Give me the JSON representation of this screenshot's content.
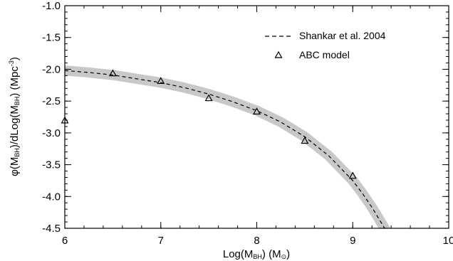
{
  "chart_data": {
    "type": "line",
    "xlabel": "Log(M",
    "xlabel_sub": "BH",
    "xlabel_mid": ") (M",
    "xlabel_sub2": "⊙",
    "xlabel_end": ")",
    "ylabel": "φ(M",
    "ylabel_sub": "BH",
    "ylabel_mid": ")/dLog(M",
    "ylabel_sub2": "BH",
    "ylabel_end": ") (Mpc",
    "ylabel_sup": "-3",
    "ylabel_close": ")",
    "xlim": [
      6,
      10
    ],
    "ylim": [
      -4.5,
      -1.0
    ],
    "xticks": [
      6,
      7,
      8,
      9,
      10
    ],
    "xtick_labels": [
      "6",
      "7",
      "8",
      "9",
      "10"
    ],
    "yticks": [
      -1.0,
      -1.5,
      -2.0,
      -2.5,
      -3.0,
      -3.5,
      -4.0,
      -4.5
    ],
    "ytick_labels": [
      "-1.0",
      "-1.5",
      "-2.0",
      "-2.5",
      "-3.0",
      "-3.5",
      "-4.0",
      "-4.5"
    ],
    "legend_position": "top-right",
    "series": [
      {
        "name": "Shankar et al. 2004",
        "style": "dashed",
        "color": "#000000",
        "band_color": "#c8c8c8",
        "band_halfwidth": 0.08,
        "x": [
          6.0,
          6.25,
          6.5,
          6.75,
          7.0,
          7.25,
          7.5,
          7.75,
          8.0,
          8.25,
          8.5,
          8.75,
          9.0,
          9.1,
          9.2,
          9.3,
          9.38
        ],
        "y": [
          -2.02,
          -2.05,
          -2.09,
          -2.15,
          -2.21,
          -2.29,
          -2.39,
          -2.51,
          -2.65,
          -2.83,
          -3.06,
          -3.36,
          -3.75,
          -3.95,
          -4.17,
          -4.42,
          -4.62
        ]
      },
      {
        "name": "ABC model",
        "style": "triangle",
        "color": "#000000",
        "x": [
          6.0,
          6.5,
          7.0,
          7.5,
          8.0,
          8.5,
          9.0
        ],
        "y": [
          -2.81,
          -2.07,
          -2.19,
          -2.46,
          -2.67,
          -3.13,
          -3.68
        ]
      }
    ]
  }
}
